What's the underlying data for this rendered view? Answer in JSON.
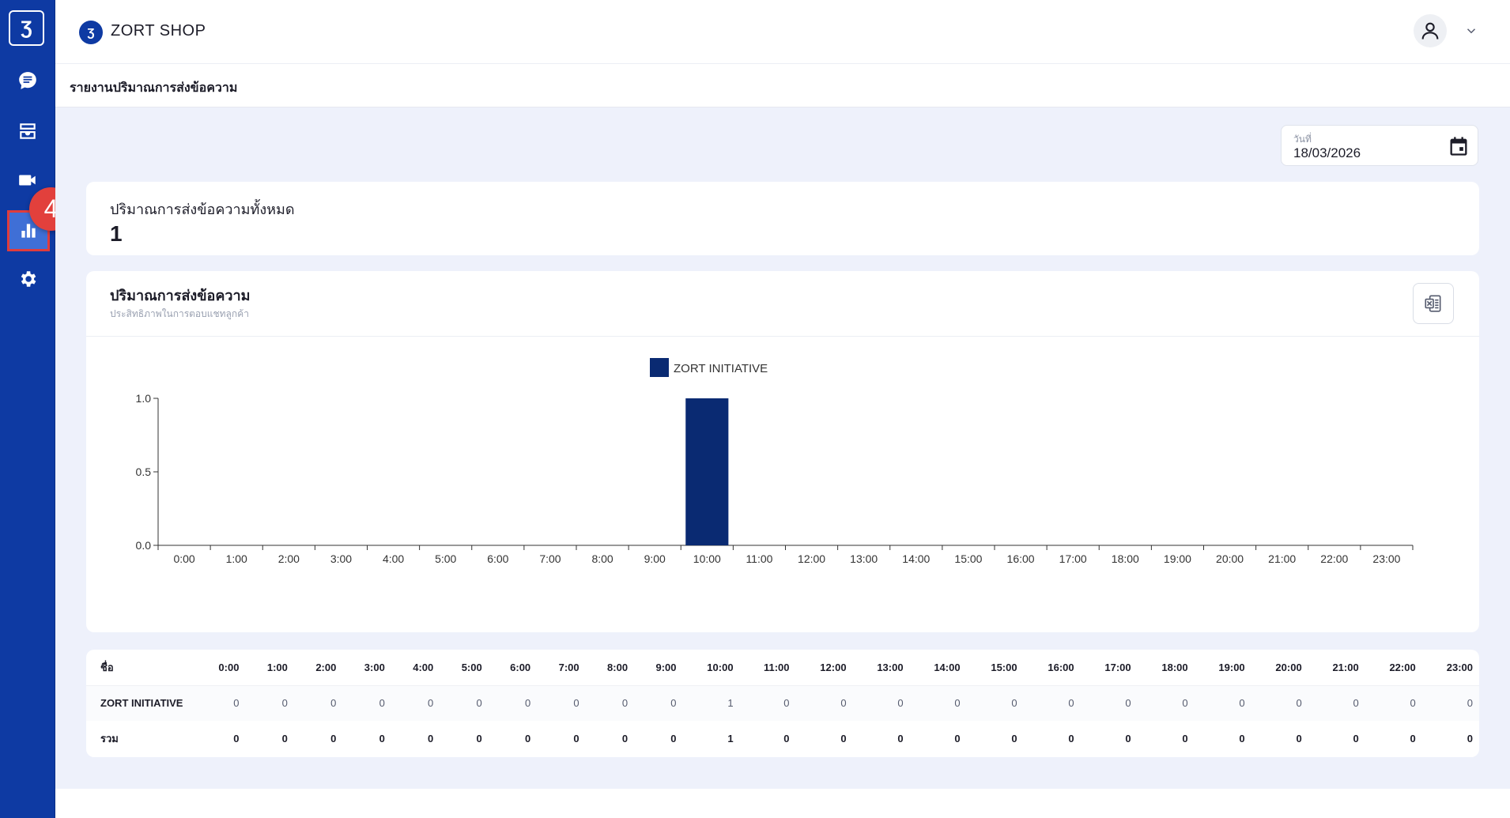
{
  "sidebar": {
    "logo": "Ʒ",
    "items": [
      {
        "icon": "chat-icon"
      },
      {
        "icon": "inbox-icon"
      },
      {
        "icon": "video-icon"
      },
      {
        "icon": "bar-chart-icon",
        "active": true
      },
      {
        "icon": "gear-icon"
      }
    ],
    "badge": "4"
  },
  "header": {
    "logo": "Ʒ",
    "shop_name": "ZORT SHOP"
  },
  "breadcrumb": "รายงานปริมาณการส่งข้อความ",
  "date_filter": {
    "label": "วันที่",
    "value": "18/03/2026"
  },
  "total_card": {
    "title": "ปริมาณการส่งข้อความทั้งหมด",
    "value": "1"
  },
  "chart_card": {
    "title": "ปริมาณการส่งข้อความ",
    "subtitle": "ประสิทธิภาพในการตอบแชทลูกค้า"
  },
  "chart_data": {
    "type": "bar",
    "categories": [
      "0:00",
      "1:00",
      "2:00",
      "3:00",
      "4:00",
      "5:00",
      "6:00",
      "7:00",
      "8:00",
      "9:00",
      "10:00",
      "11:00",
      "12:00",
      "13:00",
      "14:00",
      "15:00",
      "16:00",
      "17:00",
      "18:00",
      "19:00",
      "20:00",
      "21:00",
      "22:00",
      "23:00"
    ],
    "series": [
      {
        "name": "ZORT INITIATIVE",
        "values": [
          0,
          0,
          0,
          0,
          0,
          0,
          0,
          0,
          0,
          0,
          1,
          0,
          0,
          0,
          0,
          0,
          0,
          0,
          0,
          0,
          0,
          0,
          0,
          0
        ],
        "color": "#0a2a72"
      }
    ],
    "yticks": [
      "0.0",
      "0.5",
      "1.0"
    ],
    "ylim": [
      0,
      1
    ],
    "legend": "top-center",
    "grid": false
  },
  "table": {
    "header_name": "ชื่อ",
    "columns": [
      "0:00",
      "1:00",
      "2:00",
      "3:00",
      "4:00",
      "5:00",
      "6:00",
      "7:00",
      "8:00",
      "9:00",
      "10:00",
      "11:00",
      "12:00",
      "13:00",
      "14:00",
      "15:00",
      "16:00",
      "17:00",
      "18:00",
      "19:00",
      "20:00",
      "21:00",
      "22:00",
      "23:00"
    ],
    "rows": [
      {
        "name": "ZORT INITIATIVE",
        "values": [
          "0",
          "0",
          "0",
          "0",
          "0",
          "0",
          "0",
          "0",
          "0",
          "0",
          "1",
          "0",
          "0",
          "0",
          "0",
          "0",
          "0",
          "0",
          "0",
          "0",
          "0",
          "0",
          "0",
          "0"
        ]
      }
    ],
    "total": {
      "name": "รวม",
      "values": [
        "0",
        "0",
        "0",
        "0",
        "0",
        "0",
        "0",
        "0",
        "0",
        "0",
        "1",
        "0",
        "0",
        "0",
        "0",
        "0",
        "0",
        "0",
        "0",
        "0",
        "0",
        "0",
        "0",
        "0"
      ]
    }
  }
}
